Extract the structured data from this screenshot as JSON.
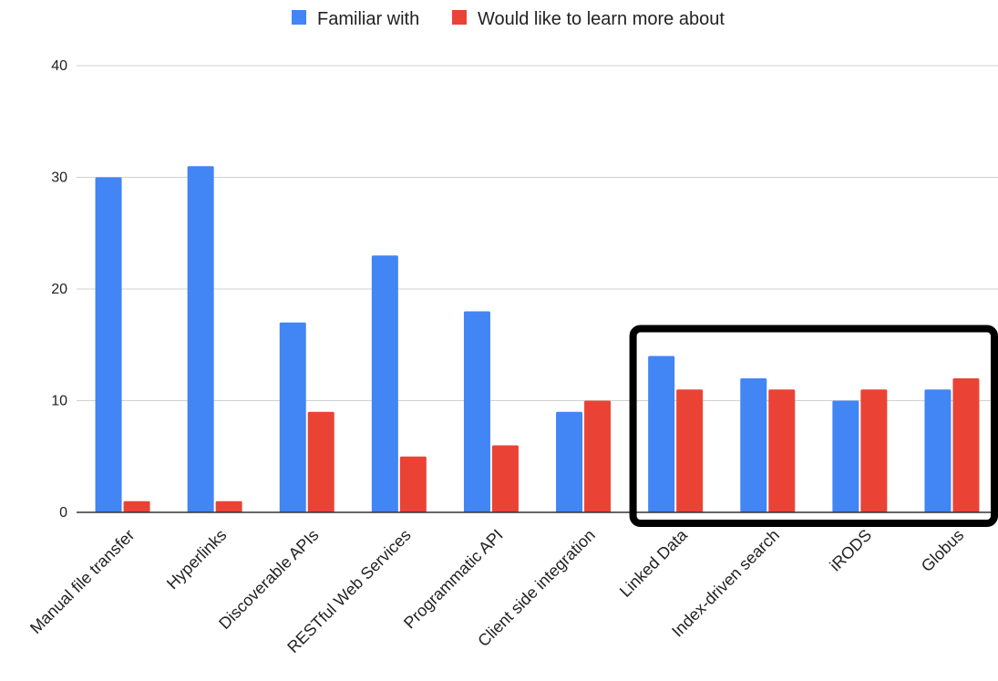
{
  "chart_data": {
    "type": "bar",
    "title": "",
    "xlabel": "",
    "ylabel": "",
    "ylim": [
      0,
      40
    ],
    "yticks": [
      0,
      10,
      20,
      30,
      40
    ],
    "grid": true,
    "legend_position": "top-center",
    "categories": [
      "Manual file transfer",
      "Hyperlinks",
      "Discoverable APIs",
      "RESTful Web Services",
      "Programmatic API",
      "Client side integration",
      "Linked Data",
      "Index-driven search",
      "iRODS",
      "Globus"
    ],
    "series": [
      {
        "name": "Familiar with",
        "color": "#4285f4",
        "values": [
          30,
          31,
          17,
          23,
          18,
          9,
          14,
          12,
          10,
          11
        ]
      },
      {
        "name": "Would like to learn more about",
        "color": "#ea4335",
        "values": [
          1,
          1,
          9,
          5,
          6,
          10,
          11,
          11,
          11,
          12
        ]
      }
    ],
    "highlight": {
      "categories": [
        "Linked Data",
        "Index-driven search",
        "iRODS",
        "Globus"
      ],
      "color": "#000000"
    }
  }
}
